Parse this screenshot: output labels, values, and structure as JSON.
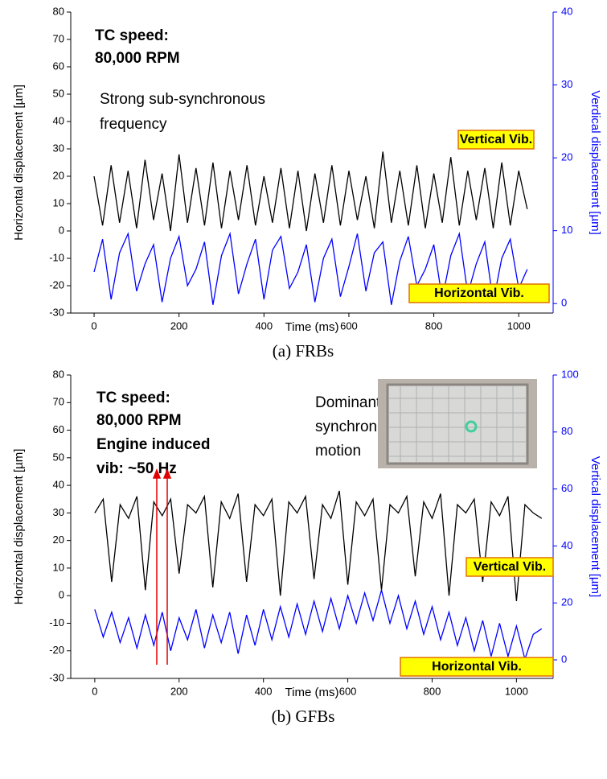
{
  "chart_data": [
    {
      "type": "line",
      "xlabel": "Time (ms)",
      "ylabel": "Horizontal displacement [µm]",
      "y2label": "Verdical displacement [µm]",
      "caption": "(a) FRBs",
      "bold_annotations": [
        "TC speed:",
        "80,000 RPM"
      ],
      "annotations": [
        "Strong sub-synchronous",
        "frequency"
      ],
      "x": [
        0,
        20,
        40,
        60,
        80,
        100,
        120,
        140,
        160,
        180,
        200,
        220,
        240,
        260,
        280,
        300,
        320,
        340,
        360,
        380,
        400,
        420,
        440,
        460,
        480,
        500,
        520,
        540,
        560,
        580,
        600,
        620,
        640,
        660,
        680,
        700,
        720,
        740,
        760,
        780,
        800,
        820,
        840,
        860,
        880,
        900,
        920,
        940,
        960,
        980,
        1000,
        1020
      ],
      "series": [
        {
          "name": "Vertical Vib.",
          "color": "#000000",
          "values": [
            20,
            2,
            24,
            3,
            22,
            1,
            26,
            4,
            21,
            0,
            28,
            3,
            23,
            2,
            25,
            1,
            22,
            4,
            24,
            2,
            20,
            3,
            23,
            1,
            22,
            0,
            21,
            3,
            24,
            2,
            22,
            4,
            20,
            1,
            29,
            3,
            22,
            2,
            24,
            1,
            21,
            3,
            27,
            2,
            22,
            4,
            23,
            1,
            25,
            2,
            22,
            8
          ]
        },
        {
          "name": "Horizontal Vib.",
          "color": "#0000ff",
          "values": [
            -15,
            -3,
            -25,
            -8,
            -1,
            -22,
            -12,
            -5,
            -26,
            -10,
            -2,
            -20,
            -14,
            -4,
            -27,
            -9,
            -1,
            -23,
            -12,
            -3,
            -25,
            -7,
            -2,
            -21,
            -15,
            -5,
            -26,
            -10,
            -3,
            -24,
            -13,
            -1,
            -22,
            -8,
            -4,
            -27,
            -11,
            -2,
            -20,
            -14,
            -5,
            -25,
            -9,
            -1,
            -23,
            -12,
            -4,
            -26,
            -10,
            -3,
            -21,
            -14
          ]
        }
      ],
      "xlim": [
        -55,
        1081
      ],
      "xticks": [
        0,
        200,
        400,
        600,
        800,
        1000
      ],
      "ylim": [
        -30,
        80
      ],
      "yticks": [
        -30,
        -20,
        -10,
        0,
        10,
        20,
        30,
        40,
        50,
        60,
        70,
        80
      ],
      "y2lim": [
        -1.3,
        40
      ],
      "y2ticks": [
        0,
        10,
        20,
        30,
        40
      ],
      "y2color": "#0000ff"
    },
    {
      "type": "line",
      "xlabel": "Time (ms)",
      "ylabel": "Horizontal displacement [µm]",
      "y2label": "Vertical displacement [µm]",
      "caption": "(b) GFBs",
      "bold_annotations": [
        "TC speed:",
        "80,000 RPM",
        "Engine induced",
        "vib: ~50 Hz"
      ],
      "annotations": [
        "Dominant",
        "synchronous",
        "motion"
      ],
      "x": [
        0,
        20,
        40,
        60,
        80,
        100,
        120,
        140,
        160,
        180,
        200,
        220,
        240,
        260,
        280,
        300,
        320,
        340,
        360,
        380,
        400,
        420,
        440,
        460,
        480,
        500,
        520,
        540,
        560,
        580,
        600,
        620,
        640,
        660,
        680,
        700,
        720,
        740,
        760,
        780,
        800,
        820,
        840,
        860,
        880,
        900,
        920,
        940,
        960,
        980,
        1000,
        1020,
        1040,
        1060
      ],
      "series": [
        {
          "name": "Vertical Vib.",
          "color": "#000000",
          "values": [
            30,
            35,
            5,
            33,
            28,
            36,
            2,
            34,
            29,
            35,
            8,
            33,
            30,
            36,
            3,
            34,
            28,
            37,
            5,
            33,
            29,
            35,
            0,
            34,
            30,
            36,
            6,
            33,
            28,
            38,
            4,
            34,
            29,
            35,
            2,
            33,
            30,
            36,
            7,
            34,
            28,
            37,
            0,
            33,
            30,
            35,
            5,
            34,
            29,
            36,
            -2,
            33,
            30,
            28
          ]
        },
        {
          "name": "Horizontal Vib.",
          "color": "#0000ff",
          "values": [
            -5,
            -15,
            -6,
            -17,
            -8,
            -19,
            -7,
            -18,
            -6,
            -20,
            -8,
            -16,
            -5,
            -19,
            -7,
            -17,
            -6,
            -21,
            -7,
            -18,
            -5,
            -16,
            -4,
            -15,
            -3,
            -14,
            -2,
            -13,
            -1,
            -12,
            0,
            -10,
            1,
            -9,
            2,
            -10,
            0,
            -12,
            -2,
            -14,
            -4,
            -16,
            -6,
            -18,
            -8,
            -20,
            -9,
            -22,
            -10,
            -22,
            -11,
            -23,
            -14,
            -12
          ]
        }
      ],
      "xlim": [
        -57,
        1087
      ],
      "xticks": [
        0,
        200,
        400,
        600,
        800,
        1000
      ],
      "ylim": [
        -30,
        80
      ],
      "yticks": [
        -30,
        -20,
        -10,
        0,
        10,
        20,
        30,
        40,
        50,
        60,
        70,
        80
      ],
      "y2lim": [
        -6.5,
        100
      ],
      "y2ticks": [
        0,
        20,
        40,
        60,
        80,
        100
      ],
      "y2color": "#0000ff"
    }
  ]
}
